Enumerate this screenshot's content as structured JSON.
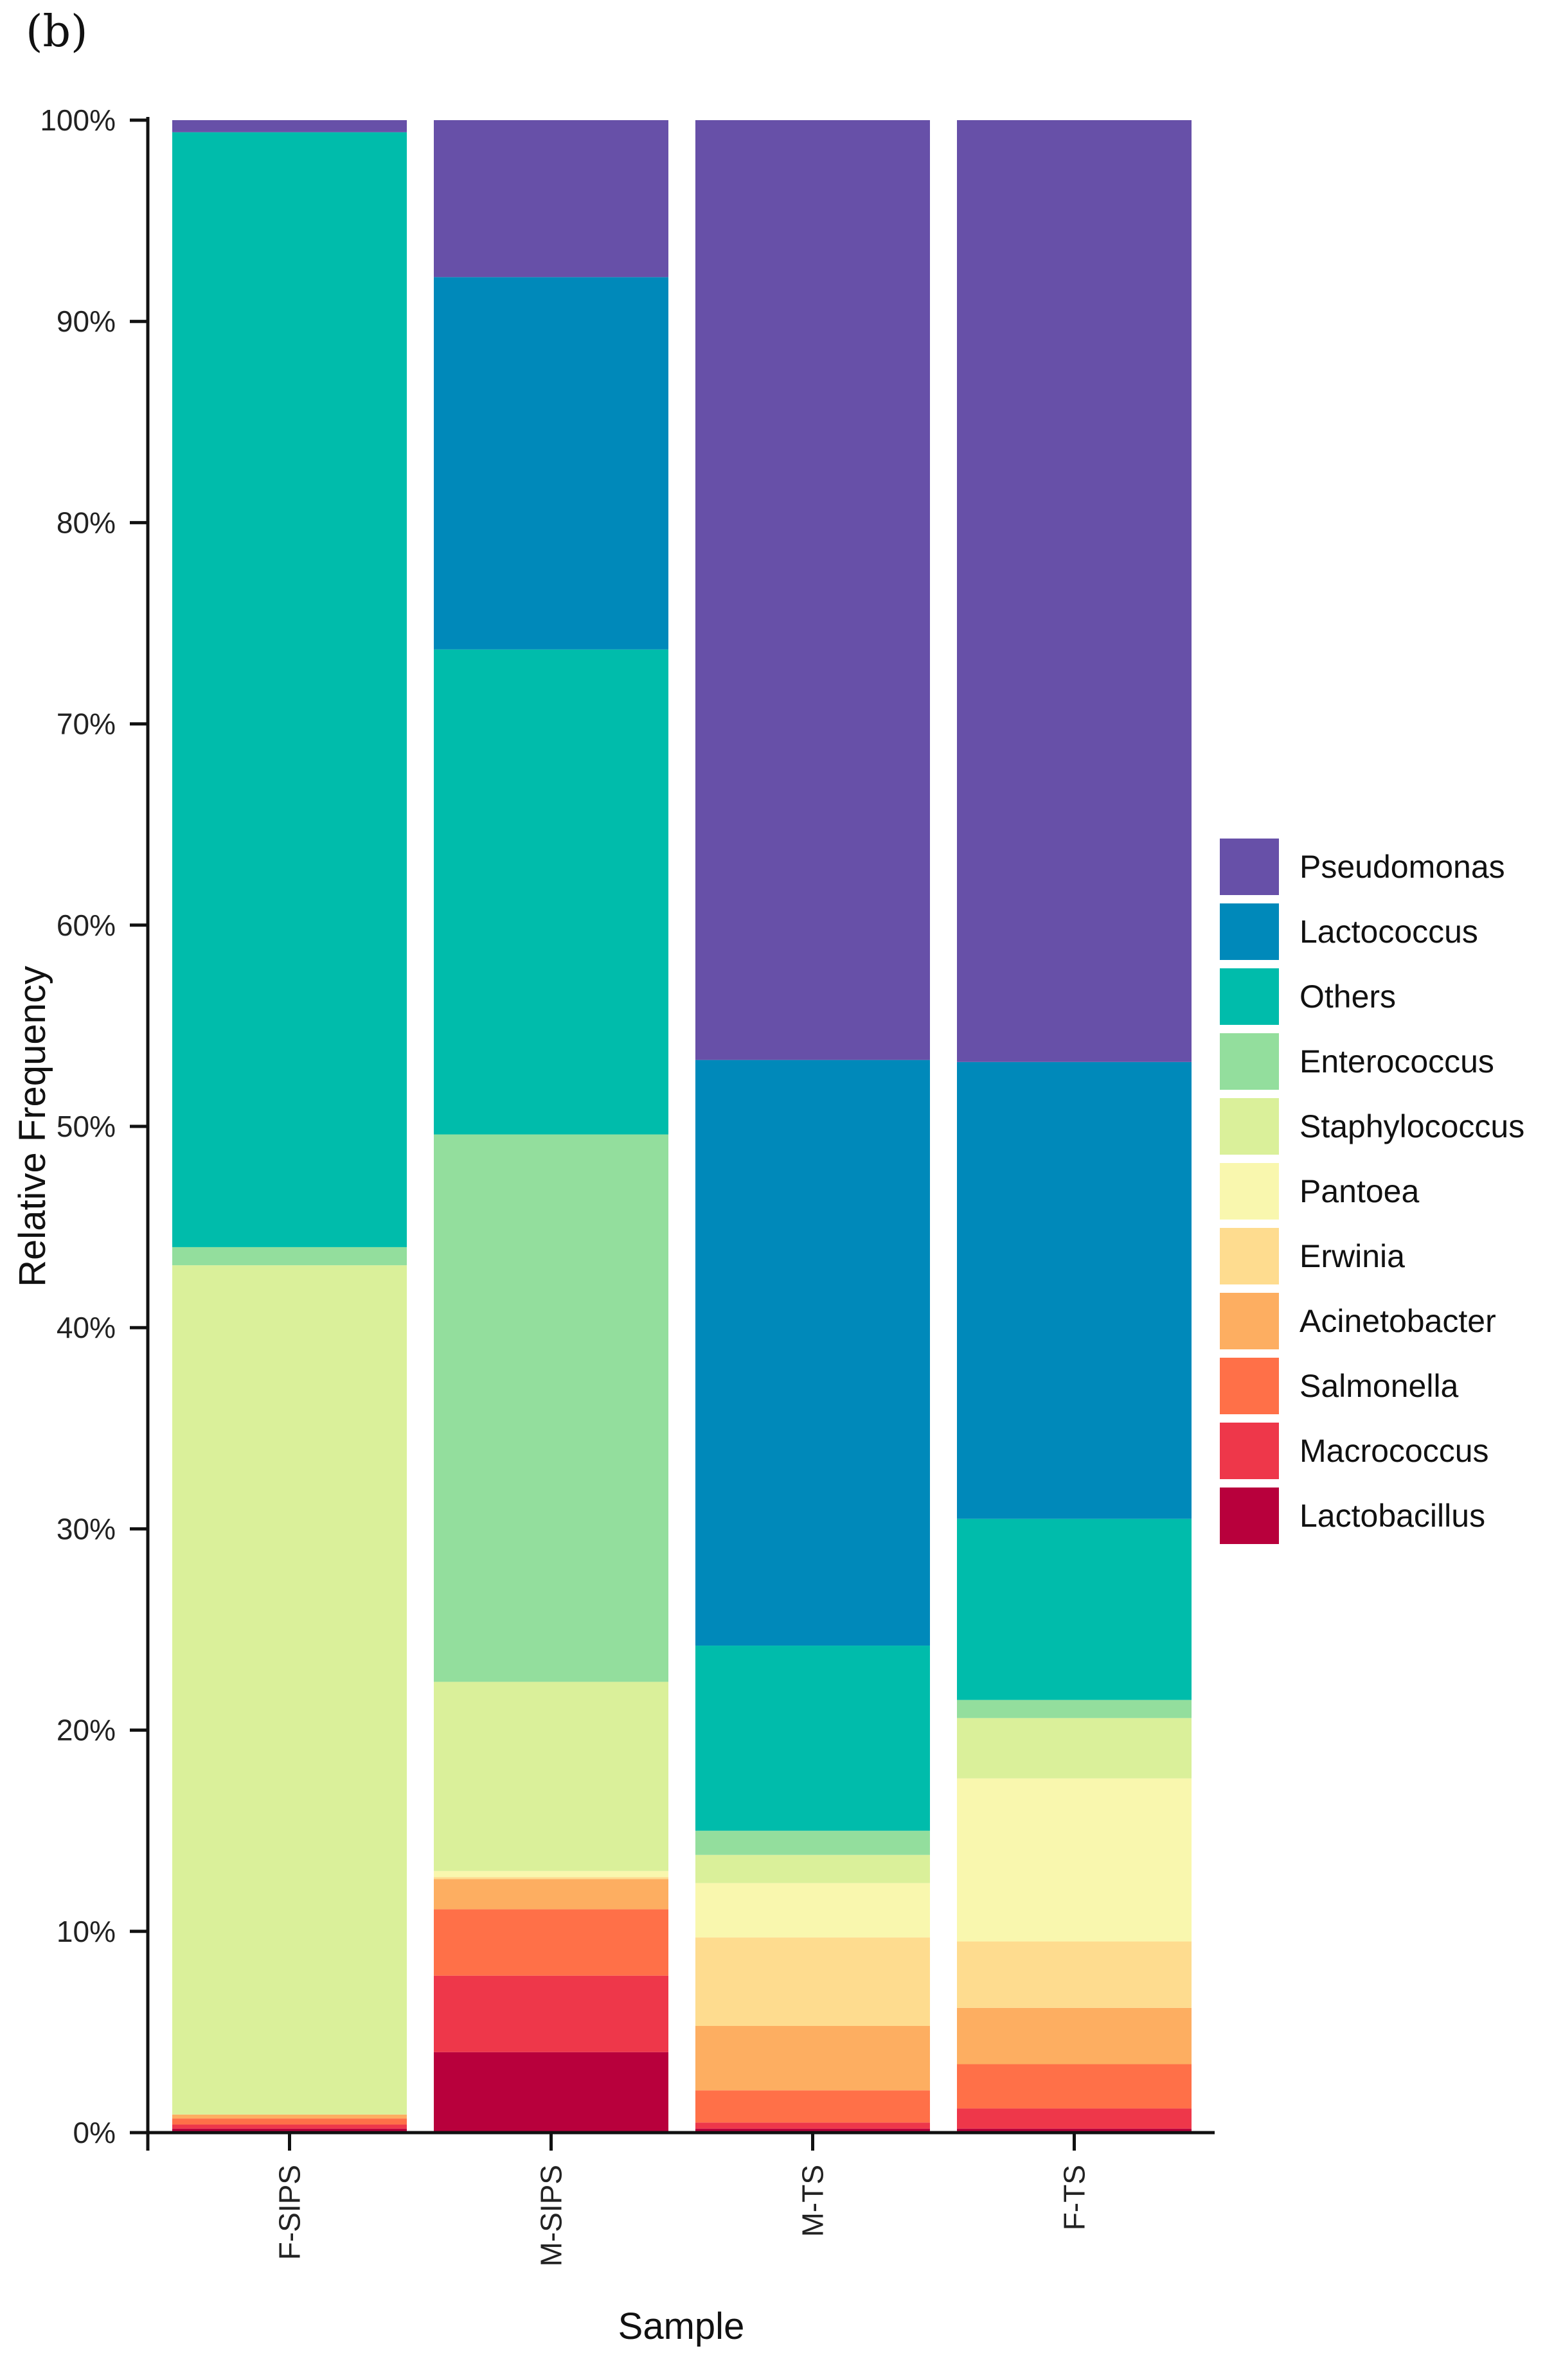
{
  "panel_label": "(b)",
  "chart_data": {
    "type": "bar",
    "stacked": true,
    "title": "",
    "xlabel": "Sample",
    "ylabel": "Relative Frequency",
    "ylim": [
      0,
      100
    ],
    "yticks": [
      0,
      10,
      20,
      30,
      40,
      50,
      60,
      70,
      80,
      90,
      100
    ],
    "ytick_labels": [
      "0%",
      "10%",
      "20%",
      "30%",
      "40%",
      "50%",
      "60%",
      "70%",
      "80%",
      "90%",
      "100%"
    ],
    "categories": [
      "F-SIPS",
      "M-SIPS",
      "M-TS",
      "F-TS"
    ],
    "legend_position": "right",
    "series": [
      {
        "name": "Lactobacillus",
        "color": "#b8003c",
        "values": [
          0.2,
          4.0,
          0.2,
          0.2
        ]
      },
      {
        "name": "Macrococcus",
        "color": "#ee374a",
        "values": [
          0.2,
          3.8,
          0.3,
          1.0
        ]
      },
      {
        "name": "Salmonella",
        "color": "#ff7048",
        "values": [
          0.3,
          3.3,
          1.6,
          2.2
        ]
      },
      {
        "name": "Acinetobacter",
        "color": "#fdae61",
        "values": [
          0.2,
          1.5,
          3.2,
          2.8
        ]
      },
      {
        "name": "Erwinia",
        "color": "#fedc8f",
        "values": [
          0.0,
          0.1,
          4.4,
          3.3
        ]
      },
      {
        "name": "Pantoea",
        "color": "#f9f7ae",
        "values": [
          0.0,
          0.3,
          2.7,
          8.1
        ]
      },
      {
        "name": "Staphylococcus",
        "color": "#daf09a",
        "values": [
          42.2,
          9.4,
          1.4,
          3.0
        ]
      },
      {
        "name": "Enterococcus",
        "color": "#93de9d",
        "values": [
          0.9,
          27.2,
          1.2,
          0.9
        ]
      },
      {
        "name": "Others",
        "color": "#00bcab",
        "values": [
          55.4,
          24.1,
          9.2,
          9.0
        ]
      },
      {
        "name": "Lactococcus",
        "color": "#0089ba",
        "values": [
          0.0,
          18.5,
          29.1,
          22.7
        ]
      },
      {
        "name": "Pseudomonas",
        "color": "#6750a8",
        "values": [
          0.6,
          7.8,
          46.7,
          46.8
        ]
      }
    ]
  }
}
